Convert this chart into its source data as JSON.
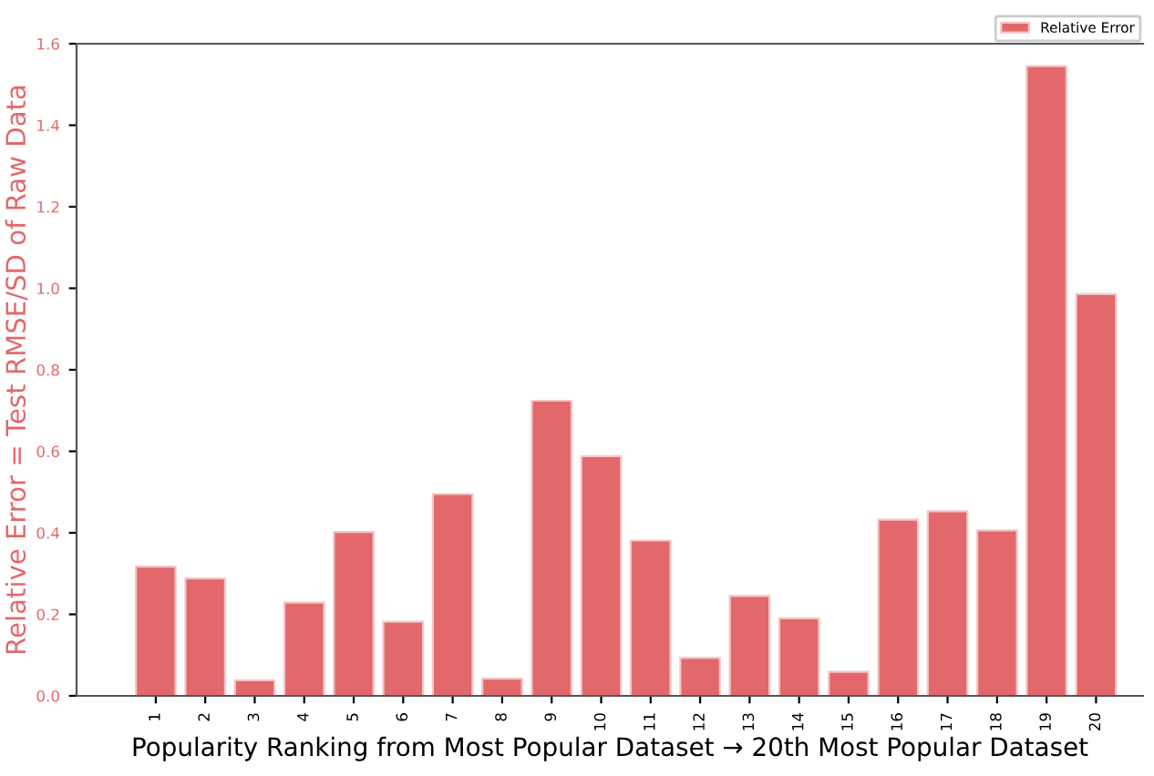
{
  "chart_data": {
    "type": "bar",
    "xlabel": "Popularity Ranking from Most Popular Dataset → 20th Most Popular Dataset",
    "ylabel": "Relative Error = Test RMSE/SD of Raw Data",
    "categories": [
      "1",
      "2",
      "3",
      "4",
      "5",
      "6",
      "7",
      "8",
      "9",
      "10",
      "11",
      "12",
      "13",
      "14",
      "15",
      "16",
      "17",
      "18",
      "19",
      "20"
    ],
    "series": [
      {
        "name": "Relative Error",
        "color": "#e2686b",
        "values": [
          0.317,
          0.288,
          0.038,
          0.229,
          0.402,
          0.182,
          0.495,
          0.042,
          0.724,
          0.588,
          0.381,
          0.093,
          0.245,
          0.19,
          0.059,
          0.432,
          0.453,
          0.406,
          1.545,
          0.986
        ]
      }
    ],
    "ylim": [
      0,
      1.6
    ],
    "yticks": [
      {
        "value": 0,
        "label": "0.0"
      },
      {
        "value": 0.2,
        "label": "0.2"
      },
      {
        "value": 0.4,
        "label": "0.4"
      },
      {
        "value": 0.6,
        "label": "0.6"
      },
      {
        "value": 0.8,
        "label": "0.8"
      },
      {
        "value": 1,
        "label": "1.0"
      },
      {
        "value": 1.2,
        "label": "1.2"
      },
      {
        "value": 1.4,
        "label": "1.4"
      },
      {
        "value": 1.6,
        "label": "1.6"
      }
    ],
    "legend": "top right",
    "grid": false
  }
}
